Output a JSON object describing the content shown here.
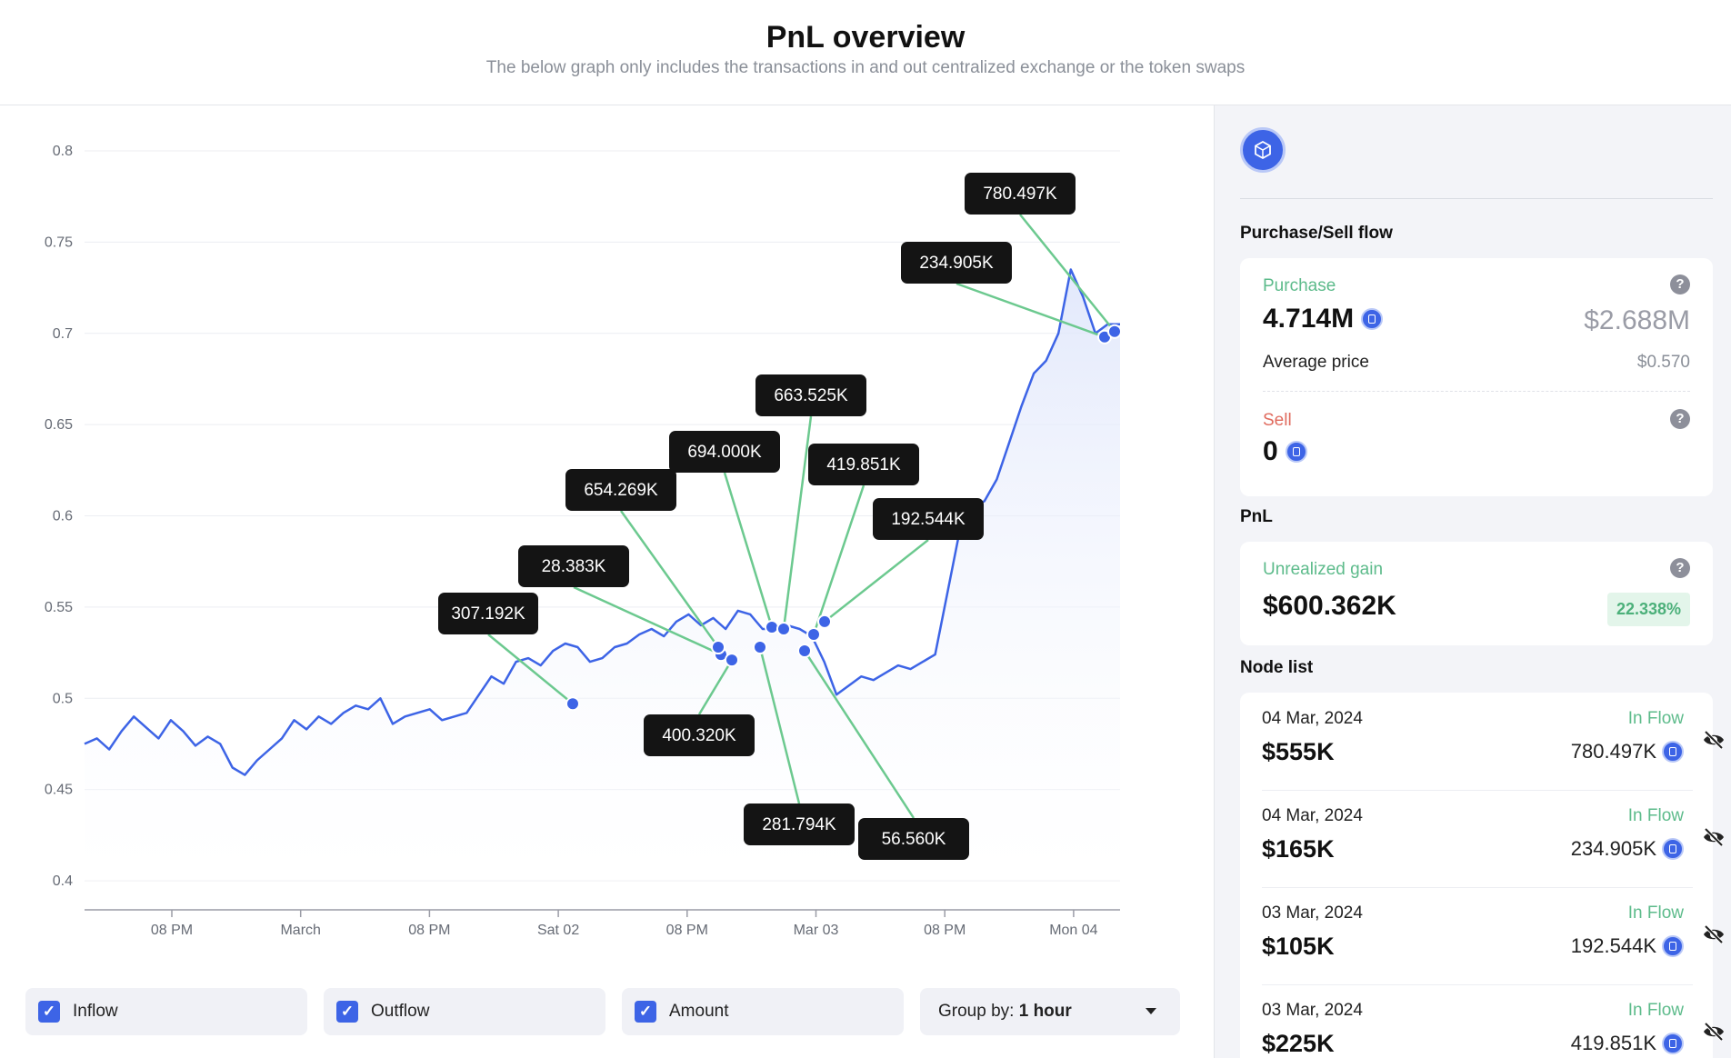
{
  "header": {
    "title": "PnL overview",
    "subtitle": "The below graph only includes the transactions in and out centralized exchange or the token swaps"
  },
  "chart_data": {
    "type": "line",
    "ylim": [
      0.4,
      0.8
    ],
    "yticks": [
      "0.8",
      "0.75",
      "0.7",
      "0.65",
      "0.6",
      "0.55",
      "0.5",
      "0.45",
      "0.4"
    ],
    "xticks": [
      "08 PM",
      "March",
      "08 PM",
      "Sat 02",
      "08 PM",
      "Mar 03",
      "08 PM",
      "Mon 04"
    ],
    "series": [
      {
        "values": [
          0.475,
          0.478,
          0.472,
          0.482,
          0.49,
          0.484,
          0.478,
          0.488,
          0.482,
          0.474,
          0.479,
          0.475,
          0.462,
          0.458,
          0.466,
          0.472,
          0.478,
          0.488,
          0.483,
          0.49,
          0.486,
          0.492,
          0.496,
          0.494,
          0.5,
          0.486,
          0.49,
          0.492,
          0.494,
          0.488,
          0.49,
          0.492,
          0.502,
          0.512,
          0.508,
          0.52,
          0.522,
          0.518,
          0.526,
          0.53,
          0.528,
          0.52,
          0.522,
          0.528,
          0.53,
          0.535,
          0.538,
          0.534,
          0.542,
          0.546,
          0.54,
          0.544,
          0.538,
          0.548,
          0.546,
          0.538,
          0.538,
          0.54,
          0.538,
          0.534,
          0.52,
          0.502,
          0.507,
          0.512,
          0.51,
          0.514,
          0.518,
          0.516,
          0.52,
          0.524,
          0.558,
          0.592,
          0.605,
          0.608,
          0.62,
          0.64,
          0.66,
          0.678,
          0.685,
          0.7,
          0.735,
          0.72,
          0.7,
          0.705,
          0.705
        ],
        "color": "#3d64e6"
      }
    ],
    "inflow_nodes": [
      {
        "label": "307.192K",
        "price": 0.497
      },
      {
        "label": "28.383K",
        "price": 0.524
      },
      {
        "label": "654.269K",
        "price": 0.528
      },
      {
        "label": "400.320K",
        "price": 0.521
      },
      {
        "label": "281.794K",
        "price": 0.528
      },
      {
        "label": "694.000K",
        "price": 0.539
      },
      {
        "label": "663.525K",
        "price": 0.538
      },
      {
        "label": "56.560K",
        "price": 0.526
      },
      {
        "label": "419.851K",
        "price": 0.535
      },
      {
        "label": "192.544K",
        "price": 0.542
      },
      {
        "label": "234.905K",
        "price": 0.698
      },
      {
        "label": "780.497K",
        "price": 0.701
      }
    ]
  },
  "controls": {
    "inflow_label": "Inflow",
    "outflow_label": "Outflow",
    "amount_label": "Amount",
    "group_by_prefix": "Group by:",
    "group_by_value": "1 hour"
  },
  "sidebar": {
    "purchase_sell_title": "Purchase/Sell flow",
    "purchase_label": "Purchase",
    "purchase_amount": "4.714M",
    "purchase_usd": "$2.688M",
    "avg_price_label": "Average price",
    "avg_price_value": "$0.570",
    "sell_label": "Sell",
    "sell_amount": "0",
    "pnl_title": "PnL",
    "unrealized_label": "Unrealized gain",
    "unrealized_value": "$600.362K",
    "unrealized_pct": "22.338%",
    "node_list_title": "Node list",
    "nodes": [
      {
        "date": "04 Mar, 2024",
        "usd": "$555K",
        "flow": "In Flow",
        "amount": "780.497K"
      },
      {
        "date": "04 Mar, 2024",
        "usd": "$165K",
        "flow": "In Flow",
        "amount": "234.905K"
      },
      {
        "date": "03 Mar, 2024",
        "usd": "$105K",
        "flow": "In Flow",
        "amount": "192.544K"
      },
      {
        "date": "03 Mar, 2024",
        "usd": "$225K",
        "flow": "In Flow",
        "amount": "419.851K"
      }
    ]
  },
  "colors": {
    "line": "#3d64e6",
    "connector": "#6cc98f",
    "callout": "#141414",
    "in_flow": "#5dbb8b",
    "sell": "#e06b5e",
    "accent": "#3d64e6"
  }
}
